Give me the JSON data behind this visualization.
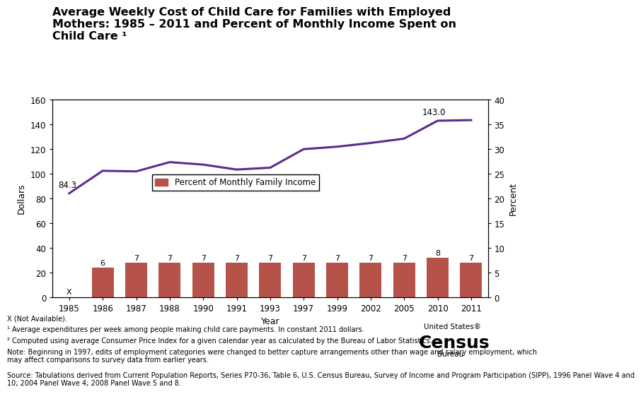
{
  "title_line1": "Average Weekly Cost of Child Care for Families with Employed",
  "title_line2": "Mothers: 1985 – 2011 and Percent of Monthly Income Spent on",
  "title_line3": "Child Care ¹",
  "years": [
    "1985",
    "1986",
    "1987",
    "1988",
    "1990",
    "1991",
    "1993",
    "1997",
    "1999",
    "2002",
    "2005",
    "2010",
    "2011"
  ],
  "bar_values_label": [
    null,
    6,
    7,
    7,
    7,
    7,
    7,
    7,
    7,
    7,
    7,
    8,
    7
  ],
  "bar_heights_display": [
    0,
    24,
    28,
    28,
    28,
    28,
    28,
    28,
    28,
    28,
    28,
    32,
    28
  ],
  "line_values": [
    84.3,
    102.5,
    102.0,
    109.5,
    107.5,
    103.5,
    105.0,
    120.0,
    122.0,
    125.0,
    128.5,
    143.0,
    143.5
  ],
  "bar_color": "#b5534a",
  "line_color": "#5b2d8e",
  "ylabel_left": "Dollars",
  "ylabel_right": "Percent",
  "xlabel": "Year",
  "ylim_left": [
    0,
    160
  ],
  "ylim_right": [
    0,
    40
  ],
  "yticks_left": [
    0,
    20,
    40,
    60,
    80,
    100,
    120,
    140,
    160
  ],
  "yticks_right": [
    0,
    5,
    10,
    15,
    20,
    25,
    30,
    35,
    40
  ],
  "annot_first": "84.3",
  "annot_peak": "143.0",
  "legend_label": "Percent of Monthly Family Income",
  "footnote_x": "X (Not Available).",
  "footnote_1": "¹ Average expenditures per week among people making child care payments. In constant 2011 dollars.",
  "footnote_2": "² Computed using average Consumer Price Index for a given calendar year as calculated by the Bureau of Labor Statistics.",
  "note": "Note: Beginning in 1997, edits of employment categories were changed to better capture arrangements other than wage and salary employment, which\nmay affect comparisons to survey data from earlier years.",
  "source": "Source: Tabulations derived from Current Population Reports, Series P70-36, Table 6, U.S. Census Bureau, Survey of Income and Program Participation (SIPP), 1996 Panel Wave 4 and\n10; 2004 Panel Wave 4; 2008 Panel Wave 5 and 8.",
  "census_line1": "United States®",
  "census_line2": "Census",
  "census_line3": "Bureau",
  "background_color": "#ffffff",
  "title_fontsize": 11.5,
  "axis_label_fontsize": 9,
  "tick_fontsize": 8.5,
  "footnote_fontsize": 7.0,
  "legend_fontsize": 8.5
}
